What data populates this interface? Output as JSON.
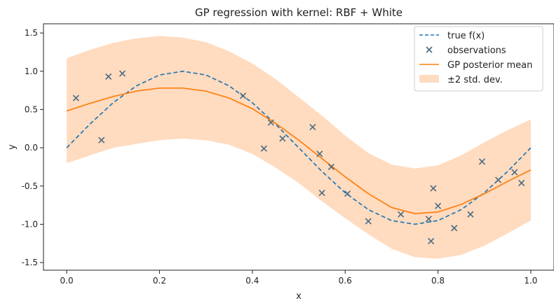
{
  "chart_data": {
    "type": "line",
    "title": "GP regression with kernel: RBF + White",
    "xlabel": "x",
    "ylabel": "y",
    "xlim": [
      -0.05,
      1.05
    ],
    "ylim": [
      -1.6,
      1.62
    ],
    "x_ticks": [
      "0.0",
      "0.2",
      "0.4",
      "0.6",
      "0.8",
      "1.0"
    ],
    "y_ticks": [
      "-1.5",
      "-1.0",
      "-0.5",
      "0.0",
      "0.5",
      "1.0",
      "1.5"
    ],
    "grid": false,
    "legend_position": "top-right",
    "colors": {
      "true_function": "#1f77b4",
      "observations": "#4a6a80",
      "posterior_mean": "#ff7f0e",
      "band": "#ffdbbf"
    },
    "series": [
      {
        "name": "true f(x)",
        "kind": "dashed-line",
        "x": [
          0.0,
          0.05,
          0.1,
          0.15,
          0.2,
          0.25,
          0.3,
          0.35,
          0.4,
          0.45,
          0.5,
          0.55,
          0.6,
          0.65,
          0.7,
          0.75,
          0.8,
          0.85,
          0.9,
          0.95,
          1.0
        ],
        "y": [
          0.0,
          0.309,
          0.588,
          0.809,
          0.951,
          1.0,
          0.951,
          0.809,
          0.588,
          0.309,
          0.0,
          -0.309,
          -0.588,
          -0.809,
          -0.951,
          -1.0,
          -0.951,
          -0.809,
          -0.588,
          -0.309,
          0.0
        ]
      },
      {
        "name": "observations",
        "kind": "scatter",
        "x": [
          0.02,
          0.075,
          0.09,
          0.12,
          0.38,
          0.425,
          0.44,
          0.465,
          0.53,
          0.545,
          0.55,
          0.57,
          0.605,
          0.65,
          0.72,
          0.78,
          0.785,
          0.79,
          0.8,
          0.835,
          0.87,
          0.895,
          0.93,
          0.965,
          0.98
        ],
        "y": [
          0.65,
          0.1,
          0.93,
          0.97,
          0.68,
          -0.01,
          0.33,
          0.12,
          0.27,
          -0.08,
          -0.59,
          -0.25,
          -0.6,
          -0.96,
          -0.87,
          -0.93,
          -1.22,
          -0.53,
          -0.76,
          -1.05,
          -0.87,
          -0.18,
          -0.42,
          -0.32,
          -0.46
        ]
      },
      {
        "name": "GP posterior mean",
        "kind": "line",
        "x": [
          0.0,
          0.05,
          0.1,
          0.15,
          0.2,
          0.25,
          0.3,
          0.35,
          0.4,
          0.45,
          0.5,
          0.55,
          0.6,
          0.65,
          0.7,
          0.75,
          0.8,
          0.85,
          0.9,
          0.95,
          1.0
        ],
        "y": [
          0.48,
          0.58,
          0.67,
          0.74,
          0.78,
          0.78,
          0.74,
          0.65,
          0.51,
          0.32,
          0.1,
          -0.14,
          -0.38,
          -0.6,
          -0.78,
          -0.86,
          -0.84,
          -0.74,
          -0.6,
          -0.44,
          -0.29
        ]
      },
      {
        "name": "±2 std. dev.",
        "kind": "band",
        "x": [
          0.0,
          0.05,
          0.1,
          0.15,
          0.2,
          0.25,
          0.3,
          0.35,
          0.4,
          0.45,
          0.5,
          0.55,
          0.6,
          0.65,
          0.7,
          0.75,
          0.8,
          0.85,
          0.9,
          0.95,
          1.0
        ],
        "upper": [
          1.17,
          1.28,
          1.37,
          1.43,
          1.46,
          1.44,
          1.38,
          1.26,
          1.1,
          0.9,
          0.66,
          0.42,
          0.16,
          -0.07,
          -0.22,
          -0.27,
          -0.23,
          -0.1,
          0.07,
          0.23,
          0.37
        ],
        "lower": [
          -0.2,
          -0.1,
          0.0,
          0.05,
          0.1,
          0.12,
          0.1,
          0.04,
          -0.08,
          -0.26,
          -0.46,
          -0.7,
          -0.92,
          -1.13,
          -1.32,
          -1.43,
          -1.45,
          -1.4,
          -1.28,
          -1.12,
          -0.95
        ]
      }
    ]
  }
}
